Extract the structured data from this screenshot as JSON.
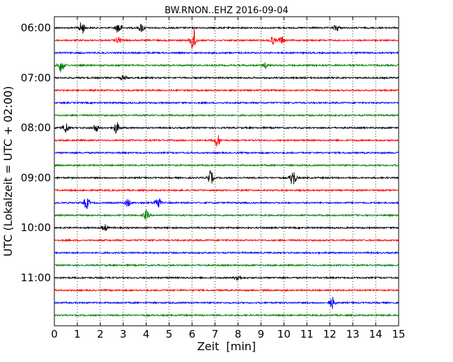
{
  "chart_data": {
    "type": "line",
    "title": "BW.RNON..EHZ 2016-09-04",
    "xlabel": "Zeit  [min]",
    "ylabel": "UTC (Lokalzeit = UTC + 02:00)",
    "xlim": [
      0,
      15
    ],
    "x_ticks": [
      "0",
      "1",
      "2",
      "3",
      "4",
      "5",
      "6",
      "7",
      "8",
      "9",
      "10",
      "11",
      "12",
      "13",
      "14",
      "15"
    ],
    "y_tick_labels": [
      "06:00",
      "07:00",
      "08:00",
      "09:00",
      "10:00",
      "11:00"
    ],
    "grid": "vertical-dotted",
    "trace_colors": [
      "#000000",
      "#ff0000",
      "#0000ff",
      "#008000"
    ],
    "traces": [
      {
        "start": "06:00",
        "events": [
          {
            "t": 1.2,
            "amp": 0.5
          },
          {
            "t": 2.8,
            "amp": 0.45
          },
          {
            "t": 3.8,
            "amp": 0.35
          },
          {
            "t": 12.3,
            "amp": 0.25
          }
        ]
      },
      {
        "start": "06:15",
        "events": [
          {
            "t": 2.8,
            "amp": 0.25
          },
          {
            "t": 6.05,
            "amp": 1.0
          },
          {
            "t": 9.5,
            "amp": 0.3
          },
          {
            "t": 9.9,
            "amp": 0.3
          }
        ]
      },
      {
        "start": "06:30",
        "events": []
      },
      {
        "start": "06:45",
        "events": [
          {
            "t": 0.3,
            "amp": 0.55
          },
          {
            "t": 9.2,
            "amp": 0.2
          }
        ]
      },
      {
        "start": "07:00",
        "events": [
          {
            "t": 3.0,
            "amp": 0.2
          }
        ]
      },
      {
        "start": "07:15",
        "events": []
      },
      {
        "start": "07:30",
        "events": []
      },
      {
        "start": "07:45",
        "events": []
      },
      {
        "start": "08:00",
        "events": [
          {
            "t": 0.5,
            "amp": 0.4
          },
          {
            "t": 1.8,
            "amp": 0.3
          },
          {
            "t": 2.7,
            "amp": 0.45
          }
        ]
      },
      {
        "start": "08:15",
        "events": [
          {
            "t": 7.1,
            "amp": 0.5
          }
        ]
      },
      {
        "start": "08:30",
        "events": []
      },
      {
        "start": "08:45",
        "events": []
      },
      {
        "start": "09:00",
        "events": [
          {
            "t": 6.8,
            "amp": 0.55
          },
          {
            "t": 10.4,
            "amp": 0.65
          }
        ]
      },
      {
        "start": "09:15",
        "events": []
      },
      {
        "start": "09:30",
        "events": [
          {
            "t": 1.4,
            "amp": 0.45
          },
          {
            "t": 3.2,
            "amp": 0.3
          },
          {
            "t": 4.5,
            "amp": 0.5
          }
        ]
      },
      {
        "start": "09:45",
        "events": [
          {
            "t": 4.0,
            "amp": 0.35
          }
        ]
      },
      {
        "start": "10:00",
        "events": [
          {
            "t": 2.2,
            "amp": 0.25
          }
        ]
      },
      {
        "start": "10:15",
        "events": []
      },
      {
        "start": "10:30",
        "events": []
      },
      {
        "start": "10:45",
        "events": []
      },
      {
        "start": "11:00",
        "events": [
          {
            "t": 8.0,
            "amp": 0.3
          }
        ]
      },
      {
        "start": "11:15",
        "events": []
      },
      {
        "start": "11:30",
        "events": [
          {
            "t": 12.1,
            "amp": 0.45
          }
        ]
      },
      {
        "start": "11:45",
        "events": []
      }
    ]
  }
}
